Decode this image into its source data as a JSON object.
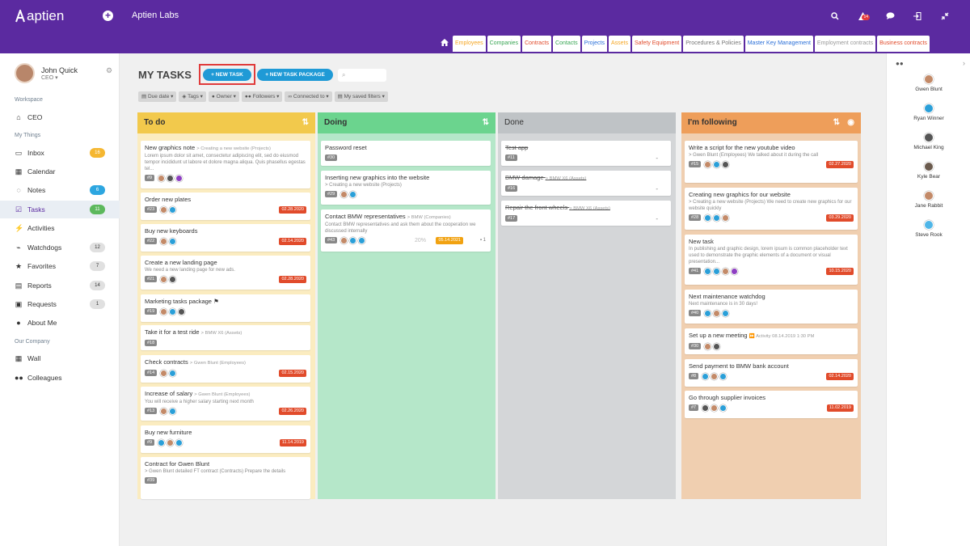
{
  "topbar": {
    "logo": "aptien",
    "org_name": "Aptien Labs",
    "notif_count": "14"
  },
  "app_tabs": [
    {
      "label": "Employees",
      "color": "#f5a623"
    },
    {
      "label": "Companies",
      "color": "#3aa655"
    },
    {
      "label": "Contracts",
      "color": "#e14b2b"
    },
    {
      "label": "Contacts",
      "color": "#3aa655"
    },
    {
      "label": "Projects",
      "color": "#2a6fd8"
    },
    {
      "label": "Assets",
      "color": "#f5a623"
    },
    {
      "label": "Safety Equipment",
      "color": "#e14b2b"
    },
    {
      "label": "Procedures & Policies",
      "color": "#777777"
    },
    {
      "label": "Master Key Management",
      "color": "#2a6fd8"
    },
    {
      "label": "Employment contracts",
      "color": "#999999"
    },
    {
      "label": "Business contracts",
      "color": "#e14b2b"
    }
  ],
  "user": {
    "name": "John Quick",
    "role": "CEO"
  },
  "nav": {
    "workspace_label": "Workspace",
    "workspace_item": "CEO",
    "mythings_label": "My Things",
    "items": [
      {
        "label": "Inbox",
        "badge": "16",
        "badge_color": "#f5b731"
      },
      {
        "label": "Calendar",
        "badge": ""
      },
      {
        "label": "Notes",
        "badge": "6",
        "badge_color": "#2da6e0"
      },
      {
        "label": "Tasks",
        "badge": "11",
        "badge_color": "#5cb85c"
      },
      {
        "label": "Activities",
        "badge": ""
      },
      {
        "label": "Watchdogs",
        "badge": "12"
      },
      {
        "label": "Favorites",
        "badge": "7"
      },
      {
        "label": "Reports",
        "badge": "14"
      },
      {
        "label": "Requests",
        "badge": "1"
      },
      {
        "label": "About Me",
        "badge": ""
      }
    ],
    "company_label": "Our Company",
    "company_items": [
      {
        "label": "Wall"
      },
      {
        "label": "Colleagues"
      }
    ]
  },
  "main": {
    "title": "MY TASKS",
    "new_task": "+ NEW TASK",
    "new_package": "+ NEW TASK PACKAGE",
    "filters": [
      "Due date",
      "Tags",
      "Owner",
      "Followers",
      "Connected to",
      "My saved filters"
    ]
  },
  "columns": {
    "todo": {
      "title": "To do",
      "cards": [
        {
          "title": "New graphics note",
          "sub": "> Creating a new website (Projects)",
          "desc": "Lorem ipsum dolor sit amet, consectetur adipiscing elit, sed do eiusmod tempor incididunt ut labore et dolore magna aliqua. Quis phasellus egestas tel...",
          "id": "#9",
          "date": ""
        },
        {
          "title": "Order new plates",
          "sub": "",
          "desc": "",
          "id": "#23",
          "date": "02.28.2020"
        },
        {
          "title": "Buy new keyboards",
          "sub": "",
          "desc": "",
          "id": "#22",
          "date": "02.14.2020"
        },
        {
          "title": "Create a new landing page",
          "sub": "",
          "desc": "We need a new landing page for new ads.",
          "id": "#21",
          "date": "02.28.2020"
        },
        {
          "title": "Marketing tasks package",
          "sub": "",
          "desc": "",
          "id": "#19",
          "date": ""
        },
        {
          "title": "Take it for a test ride",
          "sub": "> BMW X6 (Assets)",
          "desc": "",
          "id": "#18",
          "date": ""
        },
        {
          "title": "Check contracts",
          "sub": "> Gwen Blunt (Employees)",
          "desc": "",
          "id": "#14",
          "date": "02.15.2020"
        },
        {
          "title": "Increase of salary",
          "sub": "> Gwen Blunt (Employees)",
          "desc": "You will receive a higher salary starting next month",
          "id": "#13",
          "date": "02.26.2020"
        },
        {
          "title": "Buy new furniture",
          "sub": "",
          "desc": "",
          "id": "#9",
          "date": "11.14.2019"
        },
        {
          "title": "Contract for Gwen Blunt",
          "sub": "",
          "desc": "> Gwen Blunt detailed FT contract (Contracts) Prepare the details",
          "id": "#39",
          "date": ""
        }
      ]
    },
    "doing": {
      "title": "Doing",
      "cards": [
        {
          "title": "Password reset",
          "sub": "",
          "desc": "",
          "id": "#30",
          "date": ""
        },
        {
          "title": "Inserting new graphics into the website",
          "sub": "",
          "desc": "> Creating a new website (Projects)",
          "id": "#29",
          "date": ""
        },
        {
          "title": "Contact BMW representatives",
          "sub": "> BMW (Companies)",
          "desc": "Contact BMW representatives and ask them about the cooperation we discussed internally",
          "id": "#43",
          "date": "05.14.2021",
          "progress": "20%",
          "comments": "1"
        }
      ]
    },
    "done": {
      "title": "Done",
      "cards": [
        {
          "title": "Test app",
          "sub": "",
          "id": "#11",
          "dash": "-"
        },
        {
          "title": "BMW damage",
          "sub": "> BMW X6 (Assets)",
          "id": "#16",
          "dash": "-"
        },
        {
          "title": "Repair the front wheels",
          "sub": "> BMW X6 (Assets)",
          "id": "#17",
          "dash": "-"
        }
      ]
    },
    "following": {
      "title": "I'm following",
      "cards": [
        {
          "title": "Write a script for the new youtube video",
          "sub": "",
          "desc": "> Gwen Blunt (Employees) We talked about it during the call",
          "id": "#15",
          "date": "02.27.2020"
        },
        {
          "title": "Creating new graphics for our website",
          "sub": "",
          "desc": "> Creating a new website (Projects) We need to create new graphics for our website quickly",
          "id": "#28",
          "date": "03.29.2020"
        },
        {
          "title": "New task",
          "sub": "",
          "desc": "In publishing and graphic design, lorem ipsum is common placeholder text used to demonstrate the graphic elements of a document or visual presentation...",
          "id": "#41",
          "date": "10.15.2020"
        },
        {
          "title": "Next maintenance watchdog",
          "sub": "",
          "desc": "Next maintenance is in 30 days!",
          "id": "#40",
          "date": ""
        },
        {
          "title": "Set up a new meeting",
          "sub": "Activity 08.14.2019 1:30 PM",
          "desc": "",
          "id": "#30",
          "date": ""
        },
        {
          "title": "Send payment to BMW bank account",
          "sub": "",
          "desc": "",
          "id": "#8",
          "date": "02.14.2020"
        },
        {
          "title": "Go through supplier invoices",
          "sub": "",
          "desc": "",
          "id": "#7",
          "date": "11.02.2019"
        }
      ]
    }
  },
  "followers": [
    "Gwen Blunt",
    "Ryan Winner",
    "Michael King",
    "Kyle Bear",
    "Jane Rabbit",
    "Steve Rook"
  ]
}
